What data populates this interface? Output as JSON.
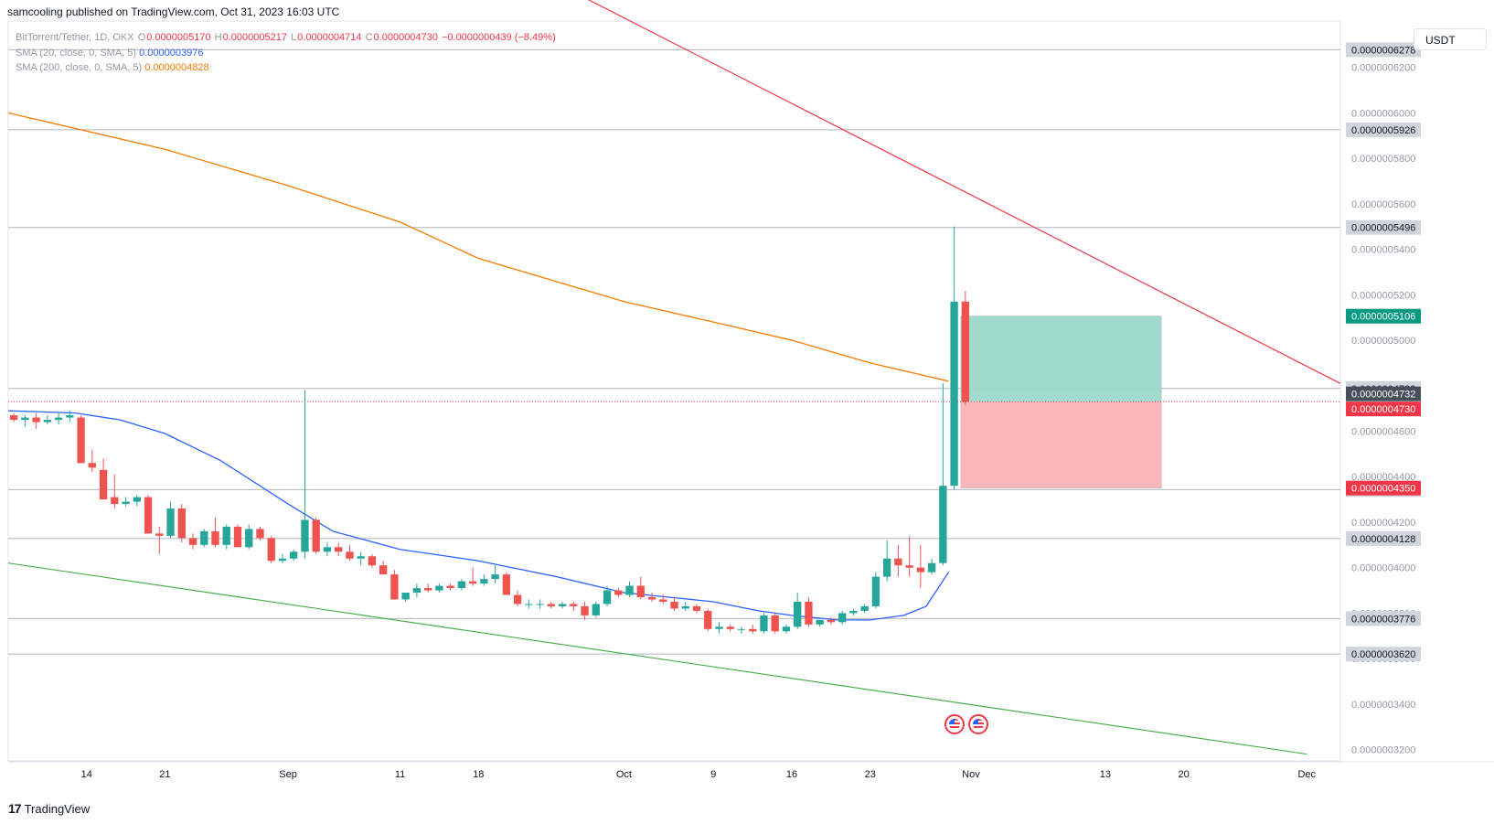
{
  "header": {
    "publisher_line": "samcooling published on TradingView.com, Oct 31, 2023 16:03 UTC"
  },
  "legend": {
    "symbol": "BitTorrent/Tether, 1D, OKX",
    "ohlc": {
      "o_label": "O",
      "o": "0.0000005170",
      "h_label": "H",
      "h": "0.0000005217",
      "l_label": "L",
      "l": "0.0000004714",
      "c_label": "C",
      "c": "0.0000004730",
      "change": "−0.0000000439 (−8.49%)"
    },
    "sma20_label": "SMA (20, close, 0, SMA, 5)",
    "sma20_value": "0.0000003976",
    "sma200_label": "SMA (200, close, 0, SMA, 5)",
    "sma200_value": "0.0000004828"
  },
  "toolbar": {
    "currency": "USDT"
  },
  "footer": {
    "brand": "TradingView"
  },
  "colors": {
    "up": "#26a69a",
    "down": "#ef5350",
    "sma20": "#2962ff",
    "sma200": "#f57c00",
    "upper_trendline": "#f23645",
    "lower_trendline": "#4caf50",
    "profit_zone": "#9ed8cc",
    "loss_zone": "#f9b3b8",
    "last_price": "#f23645"
  },
  "chart_data": {
    "type": "candlestick",
    "y_axis": {
      "ticks": [
        "0.0000006200",
        "0.0000006000",
        "0.0000005800",
        "0.0000005600",
        "0.0000005400",
        "0.0000005200",
        "0.0000005000",
        "0.0000004800",
        "0.0000004600",
        "0.0000004400",
        "0.0000004200",
        "0.0000004000",
        "0.0000003800",
        "0.0000003600",
        "0.0000003400",
        "0.0000003200"
      ],
      "ylim": [
        3.15e-07,
        6.4e-07
      ]
    },
    "x_axis": {
      "ticks": [
        {
          "label": "14",
          "date": "2023-08-14"
        },
        {
          "label": "21",
          "date": "2023-08-21"
        },
        {
          "label": "Sep",
          "date": "2023-09-01"
        },
        {
          "label": "11",
          "date": "2023-09-11"
        },
        {
          "label": "18",
          "date": "2023-09-18"
        },
        {
          "label": "Oct",
          "date": "2023-10-01"
        },
        {
          "label": "9",
          "date": "2023-10-09"
        },
        {
          "label": "16",
          "date": "2023-10-16"
        },
        {
          "label": "23",
          "date": "2023-10-23"
        },
        {
          "label": "Nov",
          "date": "2023-11-01"
        },
        {
          "label": "13",
          "date": "2023-11-13"
        },
        {
          "label": "20",
          "date": "2023-11-20"
        },
        {
          "label": "Dec",
          "date": "2023-12-01"
        }
      ],
      "xlim": [
        "2023-08-07",
        "2023-12-04"
      ]
    },
    "horizontal_levels": [
      {
        "label": "0.0000006278",
        "value": 6.278e-07,
        "style": "gray"
      },
      {
        "label": "0.0000005926",
        "value": 5.926e-07,
        "style": "gray"
      },
      {
        "label": "0.0000005496",
        "value": 5.496e-07,
        "style": "gray"
      },
      {
        "label": "0.0000004788",
        "value": 4.788e-07,
        "style": "gray"
      },
      {
        "label": "0.0000004343",
        "value": 4.343e-07,
        "style": "gray"
      },
      {
        "label": "0.0000004128",
        "value": 4.128e-07,
        "style": "gray"
      },
      {
        "label": "0.0000003776",
        "value": 3.776e-07,
        "style": "gray"
      },
      {
        "label": "0.0000003620",
        "value": 3.62e-07,
        "style": "gray"
      }
    ],
    "price_labels": [
      {
        "label": "0.0000005106",
        "value": 5.106e-07,
        "style": "teal"
      },
      {
        "label": "0.0000004732",
        "value": 4.732e-07,
        "style": "dark"
      },
      {
        "label": "0.0000004730",
        "value": 4.73e-07,
        "style": "red"
      },
      {
        "label": "0.0000004350",
        "value": 4.35e-07,
        "style": "red"
      }
    ],
    "last_price": 4.73e-07,
    "position": {
      "start": "2023-10-31",
      "end": "2023-11-18",
      "entry": 4.73e-07,
      "target": 5.106e-07,
      "stop": 4.35e-07
    },
    "trendlines": [
      {
        "name": "upper",
        "from": {
          "date": "2023-08-07",
          "value": 7.8e-07
        },
        "to": {
          "date": "2023-12-04",
          "value": 4.81e-07
        }
      },
      {
        "name": "lower",
        "from": {
          "date": "2023-08-07",
          "value": 4.02e-07
        },
        "to": {
          "date": "2023-12-01",
          "value": 3.18e-07
        }
      }
    ],
    "sma200": [
      {
        "date": "2023-08-07",
        "value": 6e-07
      },
      {
        "date": "2023-08-21",
        "value": 5.84e-07
      },
      {
        "date": "2023-09-01",
        "value": 5.68e-07
      },
      {
        "date": "2023-09-11",
        "value": 5.52e-07
      },
      {
        "date": "2023-09-18",
        "value": 5.36e-07
      },
      {
        "date": "2023-10-01",
        "value": 5.17e-07
      },
      {
        "date": "2023-10-09",
        "value": 5.08e-07
      },
      {
        "date": "2023-10-16",
        "value": 5e-07
      },
      {
        "date": "2023-10-23",
        "value": 4.9e-07
      },
      {
        "date": "2023-10-30",
        "value": 4.82e-07
      }
    ],
    "sma20": [
      {
        "date": "2023-08-07",
        "value": 4.69e-07
      },
      {
        "date": "2023-08-13",
        "value": 4.68e-07
      },
      {
        "date": "2023-08-17",
        "value": 4.65e-07
      },
      {
        "date": "2023-08-21",
        "value": 4.59e-07
      },
      {
        "date": "2023-08-26",
        "value": 4.47e-07
      },
      {
        "date": "2023-09-01",
        "value": 4.28e-07
      },
      {
        "date": "2023-09-05",
        "value": 4.16e-07
      },
      {
        "date": "2023-09-11",
        "value": 4.08e-07
      },
      {
        "date": "2023-09-18",
        "value": 4.03e-07
      },
      {
        "date": "2023-09-25",
        "value": 3.96e-07
      },
      {
        "date": "2023-10-01",
        "value": 3.89e-07
      },
      {
        "date": "2023-10-05",
        "value": 3.87e-07
      },
      {
        "date": "2023-10-09",
        "value": 3.85e-07
      },
      {
        "date": "2023-10-13",
        "value": 3.81e-07
      },
      {
        "date": "2023-10-16",
        "value": 3.79e-07
      },
      {
        "date": "2023-10-20",
        "value": 3.77e-07
      },
      {
        "date": "2023-10-23",
        "value": 3.77e-07
      },
      {
        "date": "2023-10-26",
        "value": 3.79e-07
      },
      {
        "date": "2023-10-28",
        "value": 3.83e-07
      },
      {
        "date": "2023-10-30",
        "value": 3.98e-07
      }
    ],
    "candles": [
      {
        "date": "2023-08-07",
        "o": 4.67e-07,
        "h": 4.68e-07,
        "l": 4.64e-07,
        "c": 4.65e-07
      },
      {
        "date": "2023-08-08",
        "o": 4.65e-07,
        "h": 4.67e-07,
        "l": 4.62e-07,
        "c": 4.66e-07
      },
      {
        "date": "2023-08-09",
        "o": 4.66e-07,
        "h": 4.68e-07,
        "l": 4.61e-07,
        "c": 4.64e-07
      },
      {
        "date": "2023-08-10",
        "o": 4.64e-07,
        "h": 4.67e-07,
        "l": 4.63e-07,
        "c": 4.65e-07
      },
      {
        "date": "2023-08-11",
        "o": 4.65e-07,
        "h": 4.68e-07,
        "l": 4.63e-07,
        "c": 4.66e-07
      },
      {
        "date": "2023-08-12",
        "o": 4.66e-07,
        "h": 4.69e-07,
        "l": 4.64e-07,
        "c": 4.67e-07
      },
      {
        "date": "2023-08-13",
        "o": 4.66e-07,
        "h": 4.67e-07,
        "l": 4.46e-07,
        "c": 4.46e-07
      },
      {
        "date": "2023-08-14",
        "o": 4.46e-07,
        "h": 4.52e-07,
        "l": 4.42e-07,
        "c": 4.44e-07
      },
      {
        "date": "2023-08-15",
        "o": 4.43e-07,
        "h": 4.48e-07,
        "l": 4.3e-07,
        "c": 4.3e-07
      },
      {
        "date": "2023-08-16",
        "o": 4.31e-07,
        "h": 4.41e-07,
        "l": 4.26e-07,
        "c": 4.28e-07
      },
      {
        "date": "2023-08-17",
        "o": 4.28e-07,
        "h": 4.31e-07,
        "l": 4.27e-07,
        "c": 4.29e-07
      },
      {
        "date": "2023-08-18",
        "o": 4.29e-07,
        "h": 4.32e-07,
        "l": 4.27e-07,
        "c": 4.31e-07
      },
      {
        "date": "2023-08-19",
        "o": 4.31e-07,
        "h": 4.32e-07,
        "l": 4.15e-07,
        "c": 4.15e-07
      },
      {
        "date": "2023-08-20",
        "o": 4.15e-07,
        "h": 4.18e-07,
        "l": 4.06e-07,
        "c": 4.14e-07
      },
      {
        "date": "2023-08-21",
        "o": 4.14e-07,
        "h": 4.29e-07,
        "l": 4.13e-07,
        "c": 4.26e-07
      },
      {
        "date": "2023-08-22",
        "o": 4.26e-07,
        "h": 4.28e-07,
        "l": 4.11e-07,
        "c": 4.13e-07
      },
      {
        "date": "2023-08-23",
        "o": 4.13e-07,
        "h": 4.15e-07,
        "l": 4.08e-07,
        "c": 4.1e-07
      },
      {
        "date": "2023-08-24",
        "o": 4.1e-07,
        "h": 4.17e-07,
        "l": 4.09e-07,
        "c": 4.16e-07
      },
      {
        "date": "2023-08-25",
        "o": 4.16e-07,
        "h": 4.22e-07,
        "l": 4.09e-07,
        "c": 4.1e-07
      },
      {
        "date": "2023-08-26",
        "o": 4.1e-07,
        "h": 4.19e-07,
        "l": 4.08e-07,
        "c": 4.18e-07
      },
      {
        "date": "2023-08-27",
        "o": 4.18e-07,
        "h": 4.19e-07,
        "l": 4.09e-07,
        "c": 4.09e-07
      },
      {
        "date": "2023-08-28",
        "o": 4.09e-07,
        "h": 4.19e-07,
        "l": 4.08e-07,
        "c": 4.17e-07
      },
      {
        "date": "2023-08-29",
        "o": 4.17e-07,
        "h": 4.18e-07,
        "l": 4.12e-07,
        "c": 4.13e-07
      },
      {
        "date": "2023-08-30",
        "o": 4.13e-07,
        "h": 4.14e-07,
        "l": 4.02e-07,
        "c": 4.03e-07
      },
      {
        "date": "2023-08-31",
        "o": 4.03e-07,
        "h": 4.06e-07,
        "l": 4.02e-07,
        "c": 4.04e-07
      },
      {
        "date": "2023-09-01",
        "o": 4.04e-07,
        "h": 4.08e-07,
        "l": 4.03e-07,
        "c": 4.07e-07
      },
      {
        "date": "2023-09-02",
        "o": 4.07e-07,
        "h": 4.78e-07,
        "l": 4.04e-07,
        "c": 4.21e-07
      },
      {
        "date": "2023-09-03",
        "o": 4.21e-07,
        "h": 4.22e-07,
        "l": 4.06e-07,
        "c": 4.07e-07
      },
      {
        "date": "2023-09-04",
        "o": 4.07e-07,
        "h": 4.11e-07,
        "l": 4.05e-07,
        "c": 4.09e-07
      },
      {
        "date": "2023-09-05",
        "o": 4.09e-07,
        "h": 4.11e-07,
        "l": 4.05e-07,
        "c": 4.07e-07
      },
      {
        "date": "2023-09-06",
        "o": 4.07e-07,
        "h": 4.1e-07,
        "l": 4.03e-07,
        "c": 4.04e-07
      },
      {
        "date": "2023-09-07",
        "o": 4.04e-07,
        "h": 4.07e-07,
        "l": 4.01e-07,
        "c": 4.05e-07
      },
      {
        "date": "2023-09-08",
        "o": 4.05e-07,
        "h": 4.06e-07,
        "l": 4e-07,
        "c": 4.01e-07
      },
      {
        "date": "2023-09-09",
        "o": 4.01e-07,
        "h": 4.03e-07,
        "l": 3.97e-07,
        "c": 3.97e-07
      },
      {
        "date": "2023-09-10",
        "o": 3.97e-07,
        "h": 3.99e-07,
        "l": 3.86e-07,
        "c": 3.86e-07
      },
      {
        "date": "2023-09-11",
        "o": 3.86e-07,
        "h": 3.89e-07,
        "l": 3.85e-07,
        "c": 3.89e-07
      },
      {
        "date": "2023-09-12",
        "o": 3.89e-07,
        "h": 3.93e-07,
        "l": 3.87e-07,
        "c": 3.91e-07
      },
      {
        "date": "2023-09-13",
        "o": 3.91e-07,
        "h": 3.93e-07,
        "l": 3.89e-07,
        "c": 3.9e-07
      },
      {
        "date": "2023-09-14",
        "o": 3.9e-07,
        "h": 3.93e-07,
        "l": 3.89e-07,
        "c": 3.92e-07
      },
      {
        "date": "2023-09-15",
        "o": 3.92e-07,
        "h": 3.93e-07,
        "l": 3.9e-07,
        "c": 3.91e-07
      },
      {
        "date": "2023-09-16",
        "o": 3.91e-07,
        "h": 3.95e-07,
        "l": 3.9e-07,
        "c": 3.94e-07
      },
      {
        "date": "2023-09-17",
        "o": 3.94e-07,
        "h": 4e-07,
        "l": 3.92e-07,
        "c": 3.93e-07
      },
      {
        "date": "2023-09-18",
        "o": 3.93e-07,
        "h": 3.97e-07,
        "l": 3.92e-07,
        "c": 3.95e-07
      },
      {
        "date": "2023-09-19",
        "o": 3.95e-07,
        "h": 4.01e-07,
        "l": 3.93e-07,
        "c": 3.97e-07
      },
      {
        "date": "2023-09-20",
        "o": 3.97e-07,
        "h": 3.98e-07,
        "l": 3.88e-07,
        "c": 3.88e-07
      },
      {
        "date": "2023-09-21",
        "o": 3.88e-07,
        "h": 3.9e-07,
        "l": 3.83e-07,
        "c": 3.84e-07
      },
      {
        "date": "2023-09-22",
        "o": 3.84e-07,
        "h": 3.86e-07,
        "l": 3.82e-07,
        "c": 3.84e-07
      },
      {
        "date": "2023-09-23",
        "o": 3.84e-07,
        "h": 3.86e-07,
        "l": 3.82e-07,
        "c": 3.84e-07
      },
      {
        "date": "2023-09-24",
        "o": 3.84e-07,
        "h": 3.85e-07,
        "l": 3.82e-07,
        "c": 3.83e-07
      },
      {
        "date": "2023-09-25",
        "o": 3.83e-07,
        "h": 3.85e-07,
        "l": 3.82e-07,
        "c": 3.84e-07
      },
      {
        "date": "2023-09-26",
        "o": 3.84e-07,
        "h": 3.85e-07,
        "l": 3.81e-07,
        "c": 3.83e-07
      },
      {
        "date": "2023-09-27",
        "o": 3.83e-07,
        "h": 3.85e-07,
        "l": 3.77e-07,
        "c": 3.79e-07
      },
      {
        "date": "2023-09-28",
        "o": 3.79e-07,
        "h": 3.85e-07,
        "l": 3.78e-07,
        "c": 3.84e-07
      },
      {
        "date": "2023-09-29",
        "o": 3.84e-07,
        "h": 3.92e-07,
        "l": 3.83e-07,
        "c": 3.9e-07
      },
      {
        "date": "2023-09-30",
        "o": 3.9e-07,
        "h": 3.91e-07,
        "l": 3.87e-07,
        "c": 3.88e-07
      },
      {
        "date": "2023-10-01",
        "o": 3.88e-07,
        "h": 3.94e-07,
        "l": 3.87e-07,
        "c": 3.92e-07
      },
      {
        "date": "2023-10-02",
        "o": 3.92e-07,
        "h": 3.96e-07,
        "l": 3.86e-07,
        "c": 3.87e-07
      },
      {
        "date": "2023-10-03",
        "o": 3.87e-07,
        "h": 3.89e-07,
        "l": 3.85e-07,
        "c": 3.86e-07
      },
      {
        "date": "2023-10-04",
        "o": 3.86e-07,
        "h": 3.88e-07,
        "l": 3.84e-07,
        "c": 3.85e-07
      },
      {
        "date": "2023-10-05",
        "o": 3.85e-07,
        "h": 3.87e-07,
        "l": 3.81e-07,
        "c": 3.82e-07
      },
      {
        "date": "2023-10-06",
        "o": 3.82e-07,
        "h": 3.85e-07,
        "l": 3.81e-07,
        "c": 3.83e-07
      },
      {
        "date": "2023-10-07",
        "o": 3.83e-07,
        "h": 3.84e-07,
        "l": 3.8e-07,
        "c": 3.81e-07
      },
      {
        "date": "2023-10-08",
        "o": 3.81e-07,
        "h": 3.82e-07,
        "l": 3.72e-07,
        "c": 3.73e-07
      },
      {
        "date": "2023-10-09",
        "o": 3.73e-07,
        "h": 3.76e-07,
        "l": 3.71e-07,
        "c": 3.74e-07
      },
      {
        "date": "2023-10-10",
        "o": 3.74e-07,
        "h": 3.75e-07,
        "l": 3.72e-07,
        "c": 3.73e-07
      },
      {
        "date": "2023-10-11",
        "o": 3.73e-07,
        "h": 3.74e-07,
        "l": 3.71e-07,
        "c": 3.73e-07
      },
      {
        "date": "2023-10-12",
        "o": 3.73e-07,
        "h": 3.75e-07,
        "l": 3.71e-07,
        "c": 3.72e-07
      },
      {
        "date": "2023-10-13",
        "o": 3.72e-07,
        "h": 3.8e-07,
        "l": 3.71e-07,
        "c": 3.79e-07
      },
      {
        "date": "2023-10-14",
        "o": 3.79e-07,
        "h": 3.8e-07,
        "l": 3.71e-07,
        "c": 3.72e-07
      },
      {
        "date": "2023-10-15",
        "o": 3.72e-07,
        "h": 3.75e-07,
        "l": 3.71e-07,
        "c": 3.74e-07
      },
      {
        "date": "2023-10-16",
        "o": 3.74e-07,
        "h": 3.89e-07,
        "l": 3.73e-07,
        "c": 3.85e-07
      },
      {
        "date": "2023-10-17",
        "o": 3.85e-07,
        "h": 3.87e-07,
        "l": 3.74e-07,
        "c": 3.75e-07
      },
      {
        "date": "2023-10-18",
        "o": 3.75e-07,
        "h": 3.77e-07,
        "l": 3.74e-07,
        "c": 3.77e-07
      },
      {
        "date": "2023-10-19",
        "o": 3.77e-07,
        "h": 3.78e-07,
        "l": 3.75e-07,
        "c": 3.76e-07
      },
      {
        "date": "2023-10-20",
        "o": 3.76e-07,
        "h": 3.81e-07,
        "l": 3.75e-07,
        "c": 3.8e-07
      },
      {
        "date": "2023-10-21",
        "o": 3.8e-07,
        "h": 3.82e-07,
        "l": 3.79e-07,
        "c": 3.81e-07
      },
      {
        "date": "2023-10-22",
        "o": 3.81e-07,
        "h": 3.84e-07,
        "l": 3.8e-07,
        "c": 3.83e-07
      },
      {
        "date": "2023-10-23",
        "o": 3.83e-07,
        "h": 3.98e-07,
        "l": 3.82e-07,
        "c": 3.96e-07
      },
      {
        "date": "2023-10-24",
        "o": 3.96e-07,
        "h": 4.12e-07,
        "l": 3.94e-07,
        "c": 4.04e-07
      },
      {
        "date": "2023-10-25",
        "o": 4.04e-07,
        "h": 4.1e-07,
        "l": 3.96e-07,
        "c": 4.01e-07
      },
      {
        "date": "2023-10-26",
        "o": 4.01e-07,
        "h": 4.14e-07,
        "l": 3.96e-07,
        "c": 4e-07
      },
      {
        "date": "2023-10-27",
        "o": 4e-07,
        "h": 4.1e-07,
        "l": 3.91e-07,
        "c": 3.98e-07
      },
      {
        "date": "2023-10-28",
        "o": 3.98e-07,
        "h": 4.04e-07,
        "l": 3.97e-07,
        "c": 4.02e-07
      },
      {
        "date": "2023-10-29",
        "o": 4.02e-07,
        "h": 4.81e-07,
        "l": 4.01e-07,
        "c": 4.36e-07
      },
      {
        "date": "2023-10-30",
        "o": 4.36e-07,
        "h": 5.5e-07,
        "l": 4.34e-07,
        "c": 5.17e-07
      },
      {
        "date": "2023-10-31",
        "o": 5.17e-07,
        "h": 5.217e-07,
        "l": 4.714e-07,
        "c": 4.73e-07
      }
    ]
  }
}
